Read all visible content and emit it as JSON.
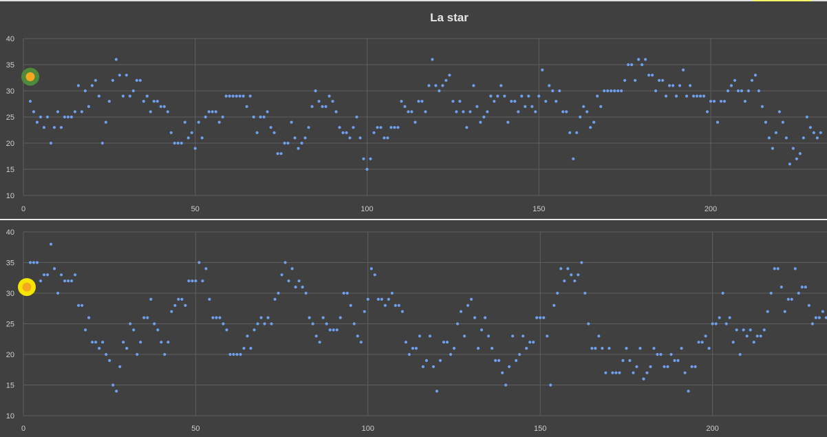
{
  "chart_data": [
    {
      "type": "scatter",
      "title": "La star",
      "xlabel": "",
      "ylabel": "",
      "xlim": [
        0,
        234
      ],
      "ylim": [
        10,
        40
      ],
      "x_ticks": [
        0,
        50,
        100,
        150,
        200
      ],
      "y_ticks": [
        10,
        15,
        20,
        25,
        30,
        35,
        40
      ],
      "grid": true,
      "legend": "none",
      "colors": {
        "points": "#6fa0ee",
        "highlight_ring": "#4f8a3a",
        "highlight_fill": "#f5a623"
      },
      "series": [
        {
          "y": [
            33,
            28,
            26,
            24,
            25,
            23,
            25,
            20,
            23,
            26,
            23,
            25,
            25,
            25,
            26,
            31,
            26,
            30,
            27,
            31,
            32,
            29,
            20,
            24,
            28,
            32,
            36,
            33,
            29,
            33,
            29,
            30,
            32,
            32,
            28,
            29,
            26,
            28,
            28,
            27,
            27,
            26,
            22,
            20,
            20,
            20,
            24,
            21,
            22,
            19,
            24,
            21,
            25,
            26,
            26,
            26,
            24,
            25,
            29,
            29,
            29,
            29,
            29,
            29,
            27,
            29,
            25,
            22,
            25,
            25,
            26,
            23,
            22,
            18,
            18,
            20,
            20,
            24,
            21,
            19,
            20,
            21,
            23,
            27,
            30,
            28,
            27,
            27,
            29,
            28,
            26,
            23,
            22,
            22,
            21,
            23,
            25,
            21,
            17,
            15,
            17,
            22,
            23,
            23,
            21,
            21,
            23,
            23,
            23,
            28,
            27,
            26,
            26,
            24,
            28,
            28,
            26,
            31,
            36,
            31,
            30,
            31,
            32,
            33,
            28,
            26,
            28,
            26,
            23,
            26,
            31,
            27,
            24,
            25,
            26,
            29,
            28,
            29,
            31,
            29,
            24,
            28,
            28,
            26,
            29,
            27,
            29,
            27,
            26,
            29,
            34,
            28,
            31,
            30,
            28,
            30,
            26,
            26,
            22,
            17,
            22,
            25,
            27,
            26,
            23,
            24,
            29,
            27,
            30,
            30,
            30,
            30,
            30,
            30,
            32,
            35,
            35,
            32,
            36,
            35,
            36,
            33,
            33,
            30,
            32,
            32,
            29,
            31,
            31,
            29,
            31,
            34,
            29,
            31,
            29,
            29,
            29,
            29,
            26,
            28,
            28,
            24,
            28,
            28,
            30,
            31,
            32,
            30,
            30,
            28,
            30,
            32,
            33,
            30,
            27,
            24,
            21,
            19,
            22,
            26,
            24,
            21,
            16,
            19,
            17,
            18,
            21,
            25,
            23,
            22,
            21,
            22
          ]
        }
      ],
      "highlight_point": {
        "x": 1,
        "y": 32.7
      }
    },
    {
      "type": "scatter",
      "title": "",
      "xlabel": "",
      "ylabel": "",
      "xlim": [
        0,
        233
      ],
      "ylim": [
        10,
        40
      ],
      "x_ticks": [
        0,
        50,
        100,
        150,
        200
      ],
      "y_ticks": [
        10,
        15,
        20,
        25,
        30,
        35,
        40
      ],
      "grid": true,
      "legend": "none",
      "colors": {
        "points": "#6fa0ee",
        "highlight_ring": "#f5e400",
        "highlight_fill": "#f5a623"
      },
      "series": [
        {
          "y": [
            31,
            35,
            35,
            35,
            32,
            33,
            33,
            38,
            34,
            30,
            33,
            32,
            32,
            32,
            33,
            28,
            28,
            24,
            26,
            22,
            22,
            21,
            22,
            20,
            19,
            15,
            14,
            18,
            22,
            21,
            25,
            24,
            20,
            22,
            26,
            26,
            29,
            25,
            24,
            22,
            20,
            22,
            27,
            28,
            29,
            29,
            28,
            32,
            32,
            32,
            35,
            32,
            34,
            29,
            26,
            26,
            26,
            25,
            24,
            20,
            20,
            20,
            20,
            21,
            23,
            21,
            24,
            25,
            26,
            25,
            26,
            25,
            29,
            30,
            33,
            35,
            32,
            34,
            31,
            32,
            31,
            30,
            26,
            25,
            23,
            22,
            26,
            25,
            24,
            24,
            24,
            26,
            30,
            30,
            28,
            25,
            23,
            22,
            27,
            29,
            34,
            33,
            29,
            29,
            28,
            29,
            30,
            28,
            28,
            27,
            22,
            20,
            21,
            21,
            23,
            18,
            19,
            23,
            18,
            14,
            19,
            22,
            22,
            20,
            21,
            25,
            27,
            23,
            28,
            29,
            26,
            21,
            24,
            26,
            23,
            21,
            19,
            19,
            17,
            15,
            18,
            23,
            19,
            20,
            23,
            21,
            22,
            22,
            26,
            26,
            26,
            23,
            15,
            28,
            30,
            34,
            32,
            34,
            33,
            32,
            33,
            35,
            30,
            25,
            21,
            21,
            23,
            21,
            17,
            21,
            17,
            17,
            17,
            19,
            21,
            19,
            17,
            18,
            21,
            16,
            17,
            18,
            21,
            20,
            20,
            18,
            18,
            20,
            19,
            19,
            21,
            17,
            14,
            18,
            18,
            22,
            22,
            23,
            21,
            25,
            25,
            26,
            30,
            25,
            26,
            22,
            24,
            20,
            24,
            23,
            24,
            22,
            23,
            23,
            24,
            27,
            30,
            34,
            34,
            31,
            27,
            29,
            29,
            34,
            30,
            31,
            31,
            28,
            25,
            26,
            26,
            27,
            26
          ]
        }
      ],
      "highlight_point": {
        "x": 0,
        "y": 31
      }
    }
  ]
}
